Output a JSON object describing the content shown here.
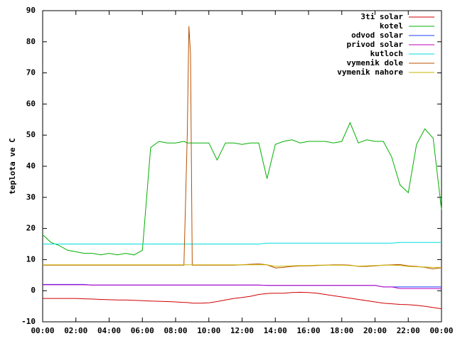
{
  "chart_data": {
    "type": "line",
    "y_label": "teplota ve C",
    "x": [
      0,
      0.5,
      1,
      1.5,
      2,
      2.5,
      3,
      3.5,
      4,
      4.5,
      5,
      5.5,
      6,
      6.5,
      7,
      7.5,
      8,
      8.5,
      8.7,
      8.8,
      8.9,
      9,
      9.5,
      10,
      10.5,
      11,
      11.5,
      12,
      12.5,
      13,
      13.5,
      14,
      14.5,
      15,
      15.5,
      16,
      16.5,
      17,
      17.5,
      18,
      18.5,
      19,
      19.5,
      20,
      20.5,
      21,
      21.5,
      22,
      22.5,
      23,
      23.5,
      24
    ],
    "xlim": [
      0,
      24
    ],
    "xticks": [
      {
        "value": 0,
        "label": "00:00"
      },
      {
        "value": 2,
        "label": "02:00"
      },
      {
        "value": 4,
        "label": "04:00"
      },
      {
        "value": 6,
        "label": "06:00"
      },
      {
        "value": 8,
        "label": "08:00"
      },
      {
        "value": 10,
        "label": "10:00"
      },
      {
        "value": 12,
        "label": "12:00"
      },
      {
        "value": 14,
        "label": "14:00"
      },
      {
        "value": 16,
        "label": "16:00"
      },
      {
        "value": 18,
        "label": "18:00"
      },
      {
        "value": 20,
        "label": "20:00"
      },
      {
        "value": 22,
        "label": "22:00"
      },
      {
        "value": 24,
        "label": "00:00"
      }
    ],
    "ylim": [
      -10,
      90
    ],
    "yticks": [
      -10,
      0,
      10,
      20,
      30,
      40,
      50,
      60,
      70,
      80,
      90
    ],
    "legend": "top-right",
    "series": [
      {
        "name": "3ti solar",
        "color": "#d00000",
        "values": [
          -2.5,
          -2.5,
          -2.5,
          -2.5,
          -2.5,
          -2.6,
          -2.7,
          -2.8,
          -2.9,
          -3,
          -3,
          -3.1,
          -3.2,
          -3.3,
          -3.4,
          -3.5,
          -3.6,
          -3.8,
          -3.8,
          -3.9,
          -3.9,
          -4,
          -4,
          -3.9,
          -3.5,
          -3,
          -2.5,
          -2.2,
          -1.8,
          -1.2,
          -0.9,
          -0.8,
          -0.8,
          -0.6,
          -0.5,
          -0.6,
          -0.8,
          -1.2,
          -1.6,
          -2,
          -2.4,
          -2.8,
          -3.2,
          -3.6,
          -4,
          -4.2,
          -4.4,
          -4.5,
          -4.7,
          -5,
          -5.4,
          -5.8
        ]
      },
      {
        "name": "kotel",
        "color": "#00b000",
        "values": [
          18,
          15.5,
          14.5,
          13,
          12.5,
          12,
          12,
          11.5,
          12,
          11.5,
          12,
          11.5,
          13,
          46,
          48,
          47.5,
          47.5,
          48,
          47.5,
          47.5,
          47.5,
          47.5,
          47.5,
          47.5,
          42,
          47.5,
          47.5,
          47,
          47.5,
          47.5,
          36,
          47,
          48,
          48.5,
          47.5,
          48,
          48,
          48,
          47.5,
          48,
          54,
          47.5,
          48.5,
          48,
          48,
          43,
          34,
          31.5,
          47,
          52,
          49,
          26
        ]
      },
      {
        "name": "odvod solar",
        "color": "#2040ff",
        "values": [
          2,
          2,
          2,
          2,
          2,
          2,
          1.8,
          1.8,
          1.8,
          1.8,
          1.8,
          1.8,
          1.8,
          1.8,
          1.8,
          1.8,
          1.8,
          1.8,
          1.8,
          1.8,
          1.8,
          1.8,
          1.8,
          1.8,
          1.8,
          1.8,
          1.8,
          1.8,
          1.8,
          1.8,
          1.7,
          1.7,
          1.7,
          1.7,
          1.7,
          1.7,
          1.7,
          1.7,
          1.7,
          1.7,
          1.7,
          1.7,
          1.7,
          1.7,
          1.2,
          1.2,
          1.2,
          1.2,
          1.2,
          1.2,
          1.2,
          1.2
        ]
      },
      {
        "name": "privod solar",
        "color": "#c000c0",
        "values": [
          1.9,
          1.9,
          1.9,
          1.9,
          1.9,
          1.9,
          1.8,
          1.8,
          1.8,
          1.8,
          1.8,
          1.8,
          1.8,
          1.8,
          1.8,
          1.8,
          1.8,
          1.8,
          1.8,
          1.8,
          1.8,
          1.8,
          1.8,
          1.8,
          1.8,
          1.8,
          1.8,
          1.8,
          1.8,
          1.8,
          1.7,
          1.7,
          1.7,
          1.7,
          1.7,
          1.7,
          1.7,
          1.7,
          1.7,
          1.7,
          1.7,
          1.7,
          1.7,
          1.7,
          1.2,
          1.2,
          0.7,
          0.7,
          0.7,
          0.7,
          0.7,
          0.7
        ]
      },
      {
        "name": "kutloch",
        "color": "#00dddd",
        "values": [
          15,
          15,
          15,
          15,
          15,
          15,
          15,
          15,
          15,
          15,
          15,
          15,
          15,
          15,
          15,
          15,
          15,
          15,
          15,
          15,
          15,
          15,
          15,
          15,
          15,
          15,
          15,
          15,
          15,
          15,
          15.3,
          15.3,
          15.3,
          15.3,
          15.3,
          15.3,
          15.3,
          15.3,
          15.3,
          15.3,
          15.3,
          15.3,
          15.3,
          15.3,
          15.3,
          15.3,
          15.5,
          15.5,
          15.5,
          15.5,
          15.5,
          15.5
        ]
      },
      {
        "name": "vymenik dole",
        "color": "#b85000",
        "values": [
          8.2,
          8.2,
          8.2,
          8.2,
          8.2,
          8.2,
          8.2,
          8.2,
          8.2,
          8.2,
          8.2,
          8.2,
          8.2,
          8.2,
          8.2,
          8.2,
          8.2,
          8.2,
          50,
          85,
          76,
          8.2,
          8.2,
          8.2,
          8.2,
          8.2,
          8.2,
          8.3,
          8.5,
          8.6,
          8.3,
          7.3,
          7.5,
          7.8,
          8,
          8,
          8.1,
          8.2,
          8.3,
          8.3,
          8.2,
          7.8,
          7.8,
          8,
          8.2,
          8.3,
          8.4,
          8,
          7.8,
          7.5,
          7,
          7.4
        ]
      },
      {
        "name": "vymenik nahore",
        "color": "#c8b400",
        "values": [
          8.3,
          8.3,
          8.3,
          8.3,
          8.3,
          8.3,
          8.3,
          8.3,
          8.3,
          8.3,
          8.3,
          8.3,
          8.3,
          8.3,
          8.3,
          8.3,
          8.3,
          8.3,
          8.3,
          8.3,
          8.3,
          8.3,
          8.3,
          8.3,
          8.3,
          8.3,
          8.3,
          8.3,
          8.3,
          8.3,
          8.3,
          7.8,
          7.9,
          8,
          8.1,
          8.1,
          8.2,
          8.2,
          8.2,
          8.2,
          8.1,
          7.9,
          8,
          8.1,
          8.2,
          8.2,
          8.1,
          7.8,
          7.7,
          7.6,
          7.5,
          7.5
        ]
      }
    ]
  }
}
